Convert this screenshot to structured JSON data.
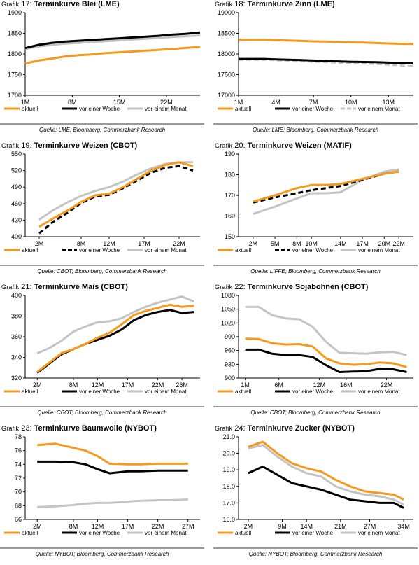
{
  "legend_labels": [
    "aktuell",
    "vor einer Woche",
    "vor einem Monat"
  ],
  "series_colors": [
    "#f59a1c",
    "#000000",
    "#c4c4c4"
  ],
  "grafik_prefix": "Grafik",
  "chart_data": [
    {
      "type": "line",
      "number": "17",
      "title": "Terminkurve Blei (LME)",
      "source": "Quelle: LME; Bloomberg, Commerzbank Research",
      "xticks": [
        "1M",
        "8M",
        "15M",
        "22M"
      ],
      "xtick_positions": [
        1,
        8,
        15,
        22
      ],
      "xlim": [
        1,
        27
      ],
      "ylim": [
        1700,
        1900
      ],
      "yticks": [
        1700,
        1750,
        1800,
        1850,
        1900
      ],
      "dash_series": [],
      "series": [
        {
          "name": "aktuell",
          "x": [
            1,
            3,
            5,
            7,
            9,
            11,
            13,
            15,
            17,
            19,
            21,
            23,
            25,
            27
          ],
          "values": [
            1777,
            1784,
            1789,
            1794,
            1797,
            1799,
            1802,
            1804,
            1806,
            1808,
            1810,
            1812,
            1815,
            1817
          ]
        },
        {
          "name": "vor einer Woche",
          "x": [
            1,
            3,
            5,
            7,
            9,
            11,
            13,
            15,
            17,
            19,
            21,
            23,
            25,
            27
          ],
          "values": [
            1814,
            1822,
            1827,
            1830,
            1832,
            1834,
            1836,
            1838,
            1840,
            1842,
            1844,
            1847,
            1849,
            1852
          ]
        },
        {
          "name": "vor einem Monat",
          "x": [
            1,
            3,
            5,
            7,
            9,
            11,
            13,
            15,
            17,
            19,
            21,
            23,
            25,
            27
          ],
          "values": [
            1812,
            1818,
            1822,
            1825,
            1827,
            1829,
            1831,
            1833,
            1835,
            1837,
            1839,
            1841,
            1843,
            1845
          ]
        }
      ]
    },
    {
      "type": "line",
      "number": "18",
      "title": "Terminkurve Zinn (LME)",
      "source": "Quelle: LME; Bloomberg, Commerzbank Research",
      "xticks": [
        "1M",
        "4M",
        "7M",
        "10M",
        "13M"
      ],
      "xtick_positions": [
        1,
        4,
        7,
        10,
        13
      ],
      "xlim": [
        1,
        15
      ],
      "ylim": [
        17000,
        19000
      ],
      "yticks": [
        17000,
        17500,
        18000,
        18500,
        19000
      ],
      "dash_series": [
        2
      ],
      "series": [
        {
          "name": "aktuell",
          "x": [
            1,
            2,
            3,
            4,
            5,
            6,
            7,
            8,
            9,
            10,
            11,
            12,
            13,
            14,
            15
          ],
          "values": [
            18340,
            18345,
            18345,
            18335,
            18325,
            18315,
            18305,
            18300,
            18290,
            18280,
            18275,
            18265,
            18255,
            18245,
            18240
          ]
        },
        {
          "name": "vor einer Woche",
          "x": [
            1,
            2,
            3,
            4,
            5,
            6,
            7,
            8,
            9,
            10,
            11,
            12,
            13,
            14,
            15
          ],
          "values": [
            17880,
            17880,
            17880,
            17870,
            17860,
            17850,
            17840,
            17830,
            17820,
            17810,
            17805,
            17800,
            17790,
            17780,
            17770
          ]
        },
        {
          "name": "vor einem Monat",
          "x": [
            1,
            2,
            3,
            4,
            5,
            6,
            7,
            8,
            9,
            10,
            11,
            12,
            13,
            14,
            15
          ],
          "values": [
            17860,
            17860,
            17860,
            17850,
            17840,
            17830,
            17810,
            17800,
            17790,
            17780,
            17770,
            17760,
            17740,
            17720,
            17700
          ]
        }
      ]
    },
    {
      "type": "line",
      "number": "19",
      "title": "Terminkurve Weizen (CBOT)",
      "source": "Quelle: CBOT; Bloomberg, Commerzbank Research",
      "xticks": [
        "2M",
        "8M",
        "12M",
        "17M",
        "22M"
      ],
      "xtick_positions": [
        2,
        8,
        12,
        17,
        22
      ],
      "xlim": [
        0,
        25
      ],
      "ylim": [
        400,
        550
      ],
      "yticks": [
        400,
        430,
        460,
        490,
        520,
        550
      ],
      "dash_series": [
        1
      ],
      "series": [
        {
          "name": "aktuell",
          "x": [
            2,
            4,
            6,
            8,
            10,
            12,
            14,
            16,
            18,
            20,
            22,
            24
          ],
          "values": [
            418,
            433,
            447,
            463,
            475,
            478,
            490,
            505,
            520,
            530,
            535,
            528
          ]
        },
        {
          "name": "vor einer Woche",
          "x": [
            2,
            4,
            6,
            8,
            10,
            12,
            14,
            16,
            18,
            20,
            22,
            24
          ],
          "values": [
            406,
            427,
            443,
            461,
            473,
            476,
            488,
            502,
            516,
            525,
            528,
            520
          ]
        },
        {
          "name": "vor einem Monat",
          "x": [
            2,
            4,
            6,
            8,
            10,
            12,
            14,
            16,
            18,
            20,
            22,
            24
          ],
          "values": [
            431,
            448,
            462,
            474,
            483,
            490,
            500,
            513,
            524,
            532,
            535,
            535
          ]
        }
      ]
    },
    {
      "type": "line",
      "number": "20",
      "title": "Terminkurve Weizen (MATIF)",
      "source": "Quelle: LIFFE; Bloomberg, Commerzbank Research",
      "xticks": [
        "2M",
        "5M",
        "8M",
        "10M",
        "14M",
        "17M",
        "20M",
        "22M"
      ],
      "xtick_positions": [
        2,
        5,
        8,
        10,
        14,
        17,
        20,
        22
      ],
      "xlim": [
        0,
        24
      ],
      "ylim": [
        150,
        190
      ],
      "yticks": [
        150,
        160,
        170,
        180,
        190
      ],
      "dash_series": [
        1
      ],
      "series": [
        {
          "name": "aktuell",
          "x": [
            2,
            5,
            8,
            10,
            12,
            14,
            17,
            20,
            22
          ],
          "values": [
            167,
            170,
            173.5,
            175,
            175,
            175.5,
            178,
            180.5,
            181.5
          ]
        },
        {
          "name": "vor einer Woche",
          "x": [
            2,
            5,
            8,
            10,
            12,
            14,
            17,
            20,
            22
          ],
          "values": [
            166.5,
            169,
            171,
            172.5,
            173.5,
            174.5,
            177.5,
            180.5,
            181.5
          ]
        },
        {
          "name": "vor einem Monat",
          "x": [
            2,
            5,
            8,
            10,
            12,
            14,
            17,
            20,
            22
          ],
          "values": [
            161,
            164.5,
            168.5,
            171,
            171,
            171.5,
            177.5,
            181.5,
            182.5
          ]
        }
      ]
    },
    {
      "type": "line",
      "number": "21",
      "title": "Terminkurve Mais (CBOT)",
      "source": "Quelle: CBOT; Bloomberg, Commerzbank Research",
      "xticks": [
        "2M",
        "8M",
        "12M",
        "17M",
        "22M",
        "26M"
      ],
      "xtick_positions": [
        2,
        8,
        12,
        17,
        22,
        26
      ],
      "xlim": [
        0,
        29
      ],
      "ylim": [
        320,
        400
      ],
      "yticks": [
        320,
        340,
        360,
        380,
        400
      ],
      "dash_series": [],
      "series": [
        {
          "name": "aktuell",
          "x": [
            2,
            4,
            6,
            8,
            10,
            12,
            14,
            16,
            18,
            20,
            22,
            24,
            26,
            28
          ],
          "values": [
            326,
            335,
            344,
            348,
            353,
            359,
            364,
            372,
            381,
            385,
            388,
            391,
            389,
            390
          ]
        },
        {
          "name": "vor einer Woche",
          "x": [
            2,
            4,
            6,
            8,
            10,
            12,
            14,
            16,
            18,
            20,
            22,
            24,
            26,
            28
          ],
          "values": [
            325,
            334,
            343,
            348,
            353,
            357,
            361,
            367,
            376,
            381,
            384,
            386,
            383,
            384
          ]
        },
        {
          "name": "vor einem Monat",
          "x": [
            2,
            4,
            6,
            8,
            10,
            12,
            14,
            16,
            18,
            20,
            22,
            24,
            26,
            28
          ],
          "values": [
            344,
            349,
            356,
            365,
            370,
            374,
            375,
            378,
            384,
            389,
            393,
            396,
            399,
            394
          ]
        }
      ]
    },
    {
      "type": "line",
      "number": "22",
      "title": "Terminkurve Sojabohnen (CBOT)",
      "source": "Quelle: CBOT; Bloomberg, Commerzbank Research",
      "xticks": [
        "1M",
        "6M",
        "12M",
        "16M",
        "22M"
      ],
      "xtick_positions": [
        1,
        6,
        12,
        16,
        22
      ],
      "xlim": [
        0,
        26
      ],
      "ylim": [
        900,
        1080
      ],
      "yticks": [
        900,
        930,
        960,
        990,
        1020,
        1050,
        1080
      ],
      "dash_series": [],
      "series": [
        {
          "name": "aktuell",
          "x": [
            1,
            3,
            5,
            7,
            9,
            11,
            13,
            15,
            17,
            19,
            21,
            23,
            25
          ],
          "values": [
            986,
            985,
            976,
            973,
            974,
            969,
            943,
            932,
            929,
            930,
            934,
            932,
            924
          ]
        },
        {
          "name": "vor einer Woche",
          "x": [
            1,
            3,
            5,
            7,
            9,
            11,
            13,
            15,
            17,
            19,
            21,
            23,
            25
          ],
          "values": [
            962,
            962,
            953,
            950,
            950,
            946,
            928,
            913,
            914,
            915,
            920,
            919,
            913
          ]
        },
        {
          "name": "vor einem Monat",
          "x": [
            1,
            3,
            5,
            7,
            9,
            11,
            13,
            15,
            17,
            19,
            21,
            23,
            25
          ],
          "values": [
            1055,
            1055,
            1037,
            1030,
            1028,
            1012,
            979,
            955,
            954,
            953,
            956,
            957,
            950
          ]
        }
      ]
    },
    {
      "type": "line",
      "number": "23",
      "title": "Terminkurve Baumwolle (NYBOT)",
      "source": "Quelle: NYBOT; Bloomberg, Commerzbank Research",
      "xticks": [
        "2M",
        "8M",
        "12M",
        "17M",
        "22M",
        "27M"
      ],
      "xtick_positions": [
        2,
        8,
        12,
        17,
        22,
        27
      ],
      "xlim": [
        0,
        29
      ],
      "ylim": [
        66,
        78
      ],
      "yticks": [
        66,
        68,
        70,
        72,
        74,
        76,
        78
      ],
      "dash_series": [],
      "series": [
        {
          "name": "aktuell",
          "x": [
            2,
            5,
            8,
            10,
            12,
            14,
            17,
            19,
            22,
            24,
            27
          ],
          "values": [
            76.8,
            77.0,
            76.4,
            76.0,
            75.2,
            74.1,
            74.0,
            74.0,
            74.1,
            74.1,
            74.1
          ]
        },
        {
          "name": "vor einer Woche",
          "x": [
            2,
            5,
            8,
            10,
            12,
            14,
            17,
            19,
            22,
            24,
            27
          ],
          "values": [
            74.4,
            74.4,
            74.3,
            74.0,
            73.3,
            72.7,
            73.0,
            73.0,
            73.1,
            73.1,
            73.1
          ]
        },
        {
          "name": "vor einem Monat",
          "x": [
            2,
            5,
            8,
            10,
            12,
            14,
            17,
            19,
            22,
            24,
            27
          ],
          "values": [
            67.8,
            67.9,
            68.1,
            68.3,
            68.4,
            68.4,
            68.6,
            68.7,
            68.8,
            68.8,
            68.9
          ]
        }
      ]
    },
    {
      "type": "line",
      "number": "24",
      "title": "Terminkurve Zucker (NYBOT)",
      "source": "Quelle: NYBOT; Bloomberg, Commerzbank Research",
      "xticks": [
        "2M",
        "9M",
        "14M",
        "21M",
        "27M",
        "34M"
      ],
      "xtick_positions": [
        2,
        9,
        14,
        21,
        27,
        34
      ],
      "xlim": [
        0,
        36
      ],
      "ylim": [
        16.0,
        21.0
      ],
      "yticks": [
        16.0,
        17.0,
        18.0,
        19.0,
        20.0,
        21.0
      ],
      "dash_series": [],
      "series": [
        {
          "name": "aktuell",
          "x": [
            2,
            5,
            8,
            11,
            14,
            17,
            20,
            23,
            26,
            29,
            32,
            34
          ],
          "values": [
            20.4,
            20.7,
            20.0,
            19.4,
            19.1,
            18.9,
            18.4,
            18.0,
            17.7,
            17.6,
            17.5,
            17.2
          ]
        },
        {
          "name": "vor einer Woche",
          "x": [
            2,
            5,
            8,
            11,
            14,
            17,
            20,
            23,
            26,
            29,
            32,
            34
          ],
          "values": [
            18.8,
            19.2,
            18.7,
            18.2,
            18.0,
            17.8,
            17.5,
            17.2,
            17.1,
            17.0,
            17.0,
            16.7
          ]
        },
        {
          "name": "vor einem Monat",
          "x": [
            2,
            5,
            8,
            11,
            14,
            17,
            20,
            23,
            26,
            29,
            32,
            34
          ],
          "values": [
            20.3,
            20.5,
            19.8,
            19.2,
            18.8,
            18.6,
            18.0,
            17.7,
            17.5,
            17.4,
            17.2,
            16.9
          ]
        }
      ]
    }
  ]
}
